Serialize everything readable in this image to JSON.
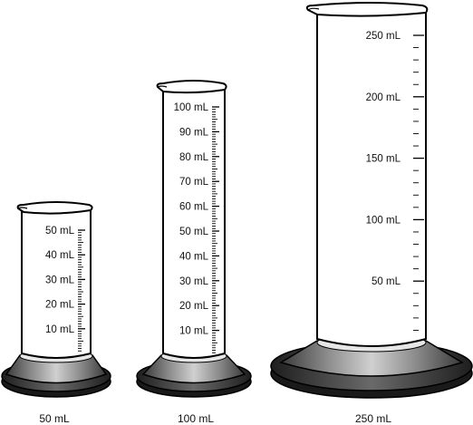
{
  "cylinders": [
    {
      "id": "50",
      "caption": "50 mL",
      "scale_labels": [
        "10 mL",
        "20 mL",
        "30 mL",
        "40 mL",
        "50 mL"
      ],
      "major_step_ml": 10,
      "minor_step_ml": 1,
      "max_ml": 50
    },
    {
      "id": "100",
      "caption": "100 mL",
      "scale_labels": [
        "10 mL",
        "20 mL",
        "30 mL",
        "40 mL",
        "50 mL",
        "60 mL",
        "70 mL",
        "80 mL",
        "90 mL",
        "100 mL"
      ],
      "major_step_ml": 10,
      "minor_step_ml": 1,
      "max_ml": 100
    },
    {
      "id": "250",
      "caption": "250 mL",
      "scale_labels": [
        "50 mL",
        "100 mL",
        "150 mL",
        "200 mL",
        "250 mL"
      ],
      "major_step_ml": 50,
      "minor_step_ml": 10,
      "max_ml": 250
    }
  ]
}
